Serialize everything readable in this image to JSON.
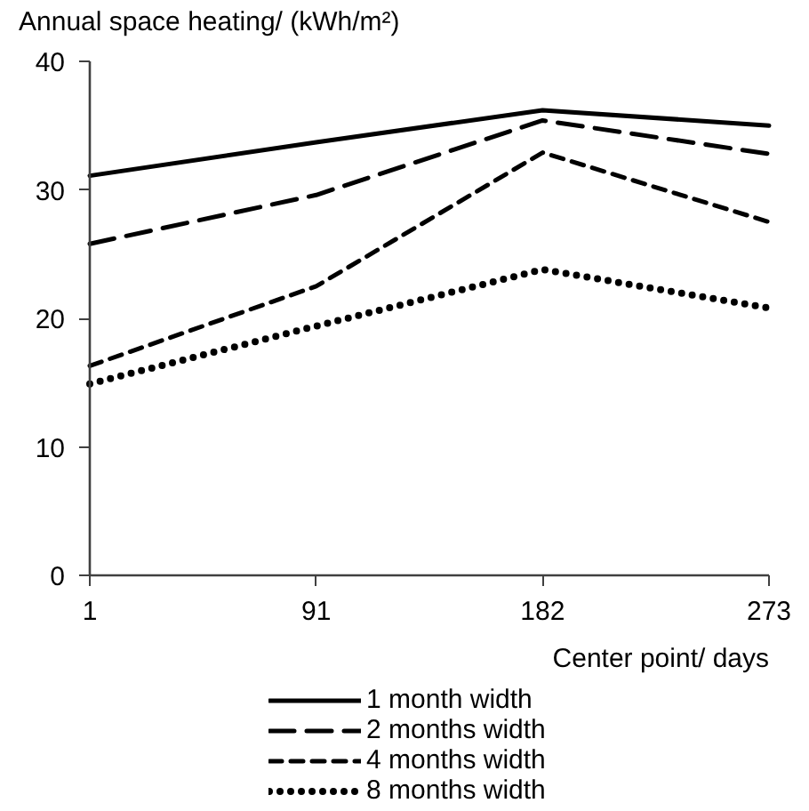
{
  "chart_data": {
    "type": "line",
    "ylabel": "Annual space heating/ (kWh/m²)",
    "xlabel": "Center point/ days",
    "categories": [
      "1",
      "91",
      "182",
      "273"
    ],
    "ylim": [
      0,
      40
    ],
    "yticks": [
      0,
      10,
      20,
      30,
      40
    ],
    "legend": "bottom",
    "series": [
      {
        "name": "1 month width",
        "color": "#000000",
        "line_style": "solid",
        "values": [
          31.1,
          33.7,
          36.2,
          35.0
        ]
      },
      {
        "name": "2 months width",
        "color": "#000000",
        "line_style": "long dashed",
        "values": [
          25.8,
          29.6,
          35.4,
          32.8
        ]
      },
      {
        "name": "4 months width",
        "color": "#000000",
        "line_style": "dashed",
        "values": [
          16.3,
          22.5,
          32.9,
          27.5
        ]
      },
      {
        "name": "8 months width",
        "color": "#000000",
        "line_style": "dotted",
        "values": [
          14.9,
          19.4,
          23.8,
          20.8
        ]
      }
    ]
  }
}
